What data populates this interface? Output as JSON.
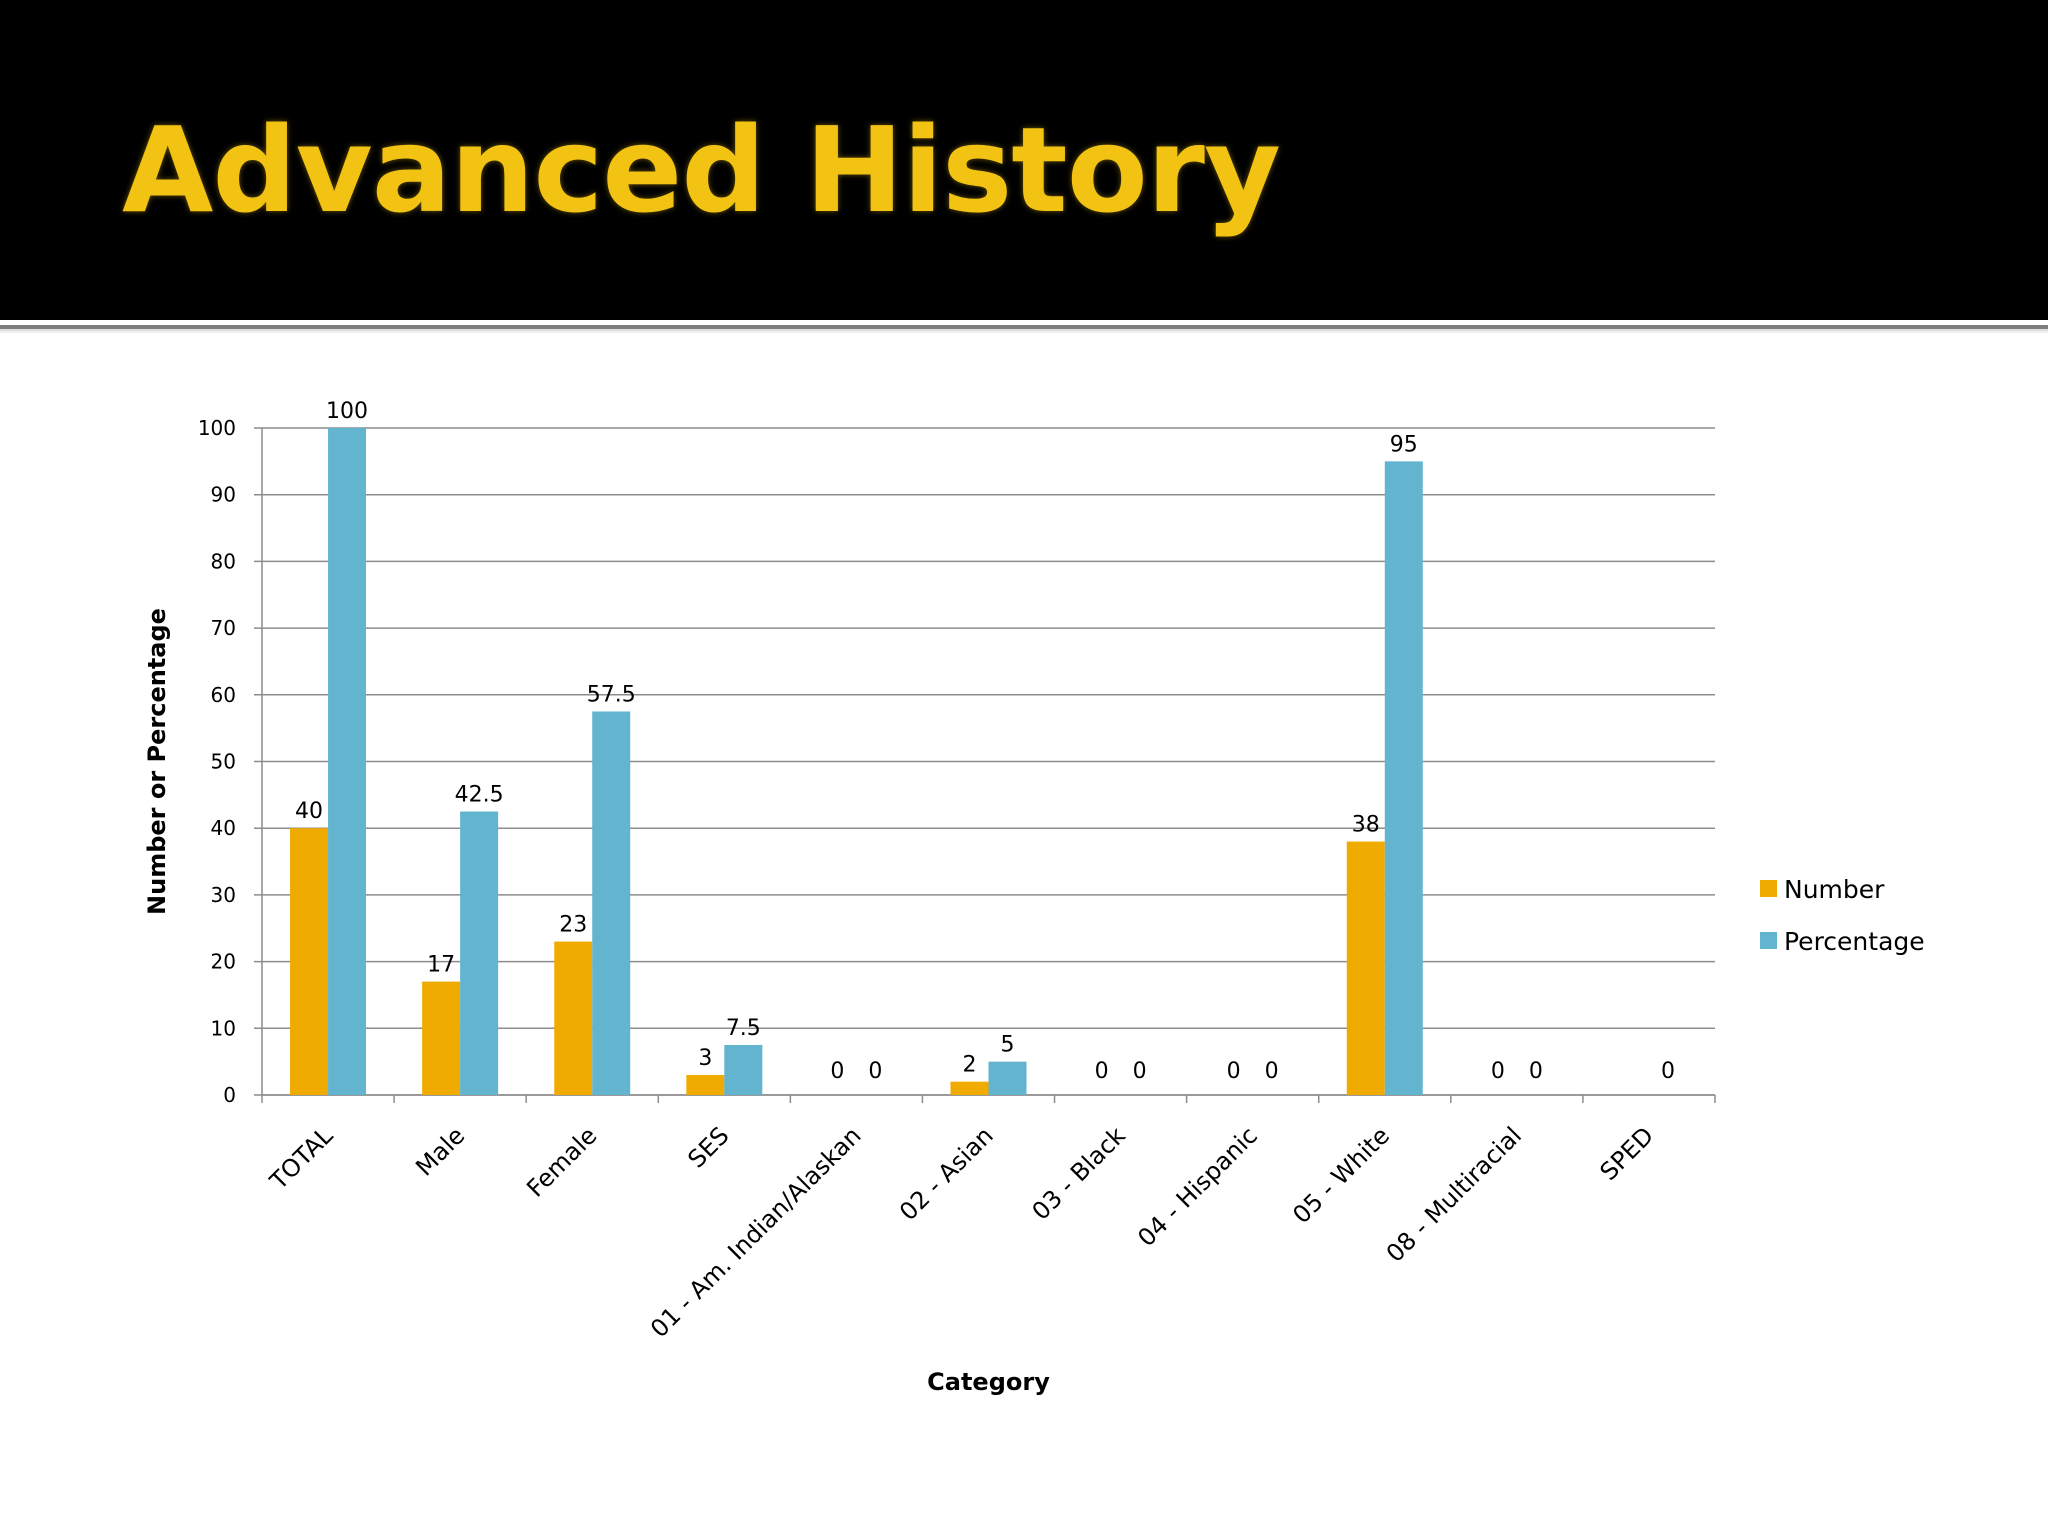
{
  "slide": {
    "title": "Advanced History"
  },
  "colors": {
    "banner": "#000000",
    "title": "#f2c313",
    "number": "#f0ab00",
    "percentage": "#63b4cf",
    "grid": "#8c8c8c"
  },
  "chart_data": {
    "type": "bar",
    "title": "",
    "xlabel": "Category",
    "ylabel": "Number or Percentage",
    "ylim": [
      0,
      100
    ],
    "yticks": [
      "0",
      "10",
      "20",
      "30",
      "40",
      "50",
      "60",
      "70",
      "80",
      "90",
      "100"
    ],
    "grid": true,
    "legend_position": "right",
    "categories": [
      "TOTAL",
      "Male",
      "Female",
      "SES",
      "01 - Am. Indian/Alaskan",
      "02 - Asian",
      "03 - Black",
      "04 - Hispanic",
      "05 - White",
      "08 - Multiracial",
      "SPED"
    ],
    "series": [
      {
        "name": "Number",
        "values": [
          40,
          17,
          23,
          3,
          0,
          2,
          0,
          0,
          38,
          0,
          null
        ],
        "labels": [
          "40",
          "17",
          "23",
          "3",
          "0",
          "2",
          "0",
          "0",
          "38",
          "0",
          ""
        ]
      },
      {
        "name": "Percentage",
        "values": [
          100,
          42.5,
          57.5,
          7.5,
          0,
          5,
          0,
          0,
          95,
          0,
          0
        ],
        "labels": [
          "100",
          "42.5",
          "57.5",
          "7.5",
          "0",
          "5",
          "0",
          "0",
          "95",
          "0",
          "0"
        ]
      }
    ]
  }
}
